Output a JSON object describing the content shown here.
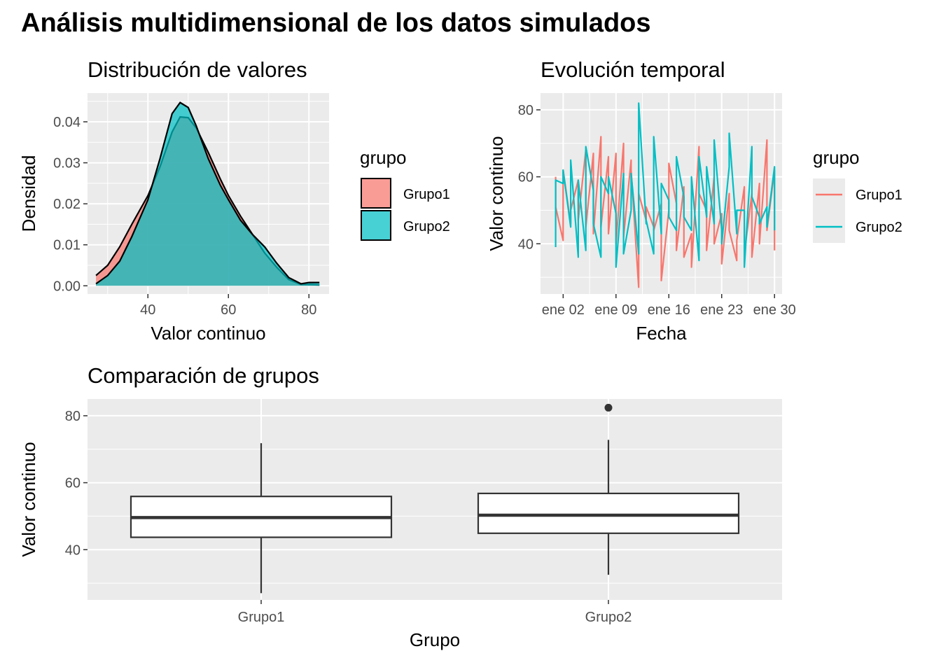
{
  "title": "Análisis multidimensional de los datos simulados",
  "colors": {
    "grupo1": "#F8766D",
    "grupo2": "#00BFC4",
    "panel": "#EBEBEB",
    "grid": "#FFFFFF",
    "box_line": "#333333"
  },
  "chart_data": [
    {
      "type": "area",
      "title": "Distribución de valores",
      "xlabel": "Valor continuo",
      "ylabel": "Densidad",
      "xlim": [
        25,
        85
      ],
      "ylim": [
        -0.002,
        0.047
      ],
      "x_ticks": [
        40,
        60,
        80
      ],
      "y_ticks": [
        0.0,
        0.01,
        0.02,
        0.03,
        0.04
      ],
      "y_tick_labels": [
        "0.00",
        "0.01",
        "0.02",
        "0.03",
        "0.04"
      ],
      "grid": true,
      "legend": {
        "title": "grupo",
        "position": "right",
        "entries": [
          "Grupo1",
          "Grupo2"
        ]
      },
      "series": [
        {
          "name": "Grupo1",
          "x": [
            27.1,
            30,
            33,
            36,
            40,
            43,
            46,
            48,
            50,
            52,
            55,
            58,
            60,
            63,
            66,
            69,
            72,
            75,
            78,
            80,
            82.6
          ],
          "values": [
            0.0025,
            0.005,
            0.0095,
            0.015,
            0.022,
            0.029,
            0.0375,
            0.0412,
            0.041,
            0.0385,
            0.0325,
            0.026,
            0.022,
            0.017,
            0.0125,
            0.008,
            0.0045,
            0.0015,
            0.0003,
            0.0003,
            0.0002
          ]
        },
        {
          "name": "Grupo2",
          "x": [
            27.1,
            30,
            33,
            36,
            40,
            43,
            46,
            48,
            50,
            52,
            55,
            58,
            60,
            63,
            66,
            69,
            72,
            75,
            78,
            80,
            82.6
          ],
          "values": [
            0.0005,
            0.0025,
            0.006,
            0.012,
            0.021,
            0.031,
            0.042,
            0.0447,
            0.0435,
            0.039,
            0.031,
            0.0245,
            0.021,
            0.016,
            0.0125,
            0.0095,
            0.0055,
            0.002,
            0.0005,
            0.0008,
            0.0008
          ]
        }
      ]
    },
    {
      "type": "line",
      "title": "Evolución temporal",
      "xlabel": "Fecha",
      "ylabel": "Valor continuo",
      "xlim": [
        "2023-12-30",
        "2024-01-31"
      ],
      "ylim": [
        25,
        85
      ],
      "x_ticks": [
        "2024-01-02",
        "2024-01-09",
        "2024-01-16",
        "2024-01-23",
        "2024-01-30"
      ],
      "x_tick_labels": [
        "ene 02",
        "ene 09",
        "ene 16",
        "ene 23",
        "ene 30"
      ],
      "y_ticks": [
        40,
        60,
        80
      ],
      "grid": true,
      "legend": {
        "title": "grupo",
        "position": "right",
        "entries": [
          "Grupo1",
          "Grupo2"
        ]
      },
      "series": [
        {
          "name": "Grupo1",
          "x": [
            "2024-01-01",
            "2024-01-01",
            "2024-01-02",
            "2024-01-02",
            "2024-01-03",
            "2024-01-03",
            "2024-01-04",
            "2024-01-04",
            "2024-01-05",
            "2024-01-05",
            "2024-01-06",
            "2024-01-06",
            "2024-01-07",
            "2024-01-07",
            "2024-01-08",
            "2024-01-08",
            "2024-01-09",
            "2024-01-09",
            "2024-01-10",
            "2024-01-10",
            "2024-01-11",
            "2024-01-11",
            "2024-01-12",
            "2024-01-12",
            "2024-01-13",
            "2024-01-13",
            "2024-01-14",
            "2024-01-14",
            "2024-01-15",
            "2024-01-15",
            "2024-01-16",
            "2024-01-16",
            "2024-01-17",
            "2024-01-17",
            "2024-01-18",
            "2024-01-18",
            "2024-01-19",
            "2024-01-19",
            "2024-01-20",
            "2024-01-20",
            "2024-01-21",
            "2024-01-21",
            "2024-01-22",
            "2024-01-22",
            "2024-01-23",
            "2024-01-23",
            "2024-01-24",
            "2024-01-24",
            "2024-01-25",
            "2024-01-25",
            "2024-01-26",
            "2024-01-26",
            "2024-01-27",
            "2024-01-27",
            "2024-01-28",
            "2024-01-28",
            "2024-01-29",
            "2024-01-29",
            "2024-01-30",
            "2024-01-30"
          ],
          "values": [
            60,
            51,
            41,
            62,
            46,
            50,
            59,
            47,
            68,
            45,
            67,
            43,
            72,
            45,
            66,
            43,
            67,
            40,
            70,
            42,
            65,
            62,
            27,
            55,
            47,
            51,
            45,
            44,
            52,
            29,
            50,
            64,
            52,
            38,
            57,
            36,
            43,
            33,
            69,
            55,
            50,
            38,
            60,
            40,
            49,
            34,
            55,
            44,
            35,
            41,
            57,
            37,
            55,
            36,
            58,
            40,
            71,
            44,
            62,
            38
          ]
        },
        {
          "name": "Grupo2",
          "x": [
            "2024-01-01",
            "2024-01-01",
            "2024-01-02",
            "2024-01-02",
            "2024-01-03",
            "2024-01-03",
            "2024-01-04",
            "2024-01-04",
            "2024-01-05",
            "2024-01-05",
            "2024-01-06",
            "2024-01-06",
            "2024-01-07",
            "2024-01-07",
            "2024-01-08",
            "2024-01-08",
            "2024-01-09",
            "2024-01-09",
            "2024-01-10",
            "2024-01-10",
            "2024-01-11",
            "2024-01-11",
            "2024-01-12",
            "2024-01-12",
            "2024-01-13",
            "2024-01-13",
            "2024-01-14",
            "2024-01-14",
            "2024-01-15",
            "2024-01-15",
            "2024-01-16",
            "2024-01-16",
            "2024-01-17",
            "2024-01-17",
            "2024-01-18",
            "2024-01-18",
            "2024-01-19",
            "2024-01-19",
            "2024-01-20",
            "2024-01-20",
            "2024-01-21",
            "2024-01-21",
            "2024-01-22",
            "2024-01-22",
            "2024-01-23",
            "2024-01-23",
            "2024-01-24",
            "2024-01-24",
            "2024-01-25",
            "2024-01-25",
            "2024-01-26",
            "2024-01-26",
            "2024-01-27",
            "2024-01-27",
            "2024-01-28",
            "2024-01-28",
            "2024-01-29",
            "2024-01-29",
            "2024-01-30",
            "2024-01-30"
          ],
          "values": [
            39,
            59,
            58,
            62,
            45,
            65,
            36,
            59,
            38,
            69,
            56,
            46,
            36,
            60,
            55,
            60,
            49,
            33,
            61,
            37,
            50,
            61,
            37,
            82,
            46,
            47,
            37,
            72,
            43,
            58,
            53,
            48,
            44,
            66,
            54,
            48,
            44,
            60,
            35,
            66,
            48,
            63,
            46,
            71,
            44,
            40,
            63,
            73,
            43,
            50,
            50,
            33,
            69,
            54,
            48,
            46,
            51,
            45,
            63,
            44
          ]
        }
      ]
    },
    {
      "type": "box",
      "title": "Comparación de grupos",
      "xlabel": "Grupo",
      "ylabel": "Valor continuo",
      "categories": [
        "Grupo1",
        "Grupo2"
      ],
      "ylim": [
        25,
        85
      ],
      "y_ticks": [
        40,
        60,
        80
      ],
      "grid": true,
      "boxes": [
        {
          "name": "Grupo1",
          "min": 27,
          "q1": 43.7,
          "median": 49.6,
          "q3": 55.9,
          "max": 71.8,
          "outliers": []
        },
        {
          "name": "Grupo2",
          "min": 32.5,
          "q1": 44.9,
          "median": 50.3,
          "q3": 56.8,
          "max": 72.8,
          "outliers": [
            82.4
          ]
        }
      ]
    }
  ]
}
